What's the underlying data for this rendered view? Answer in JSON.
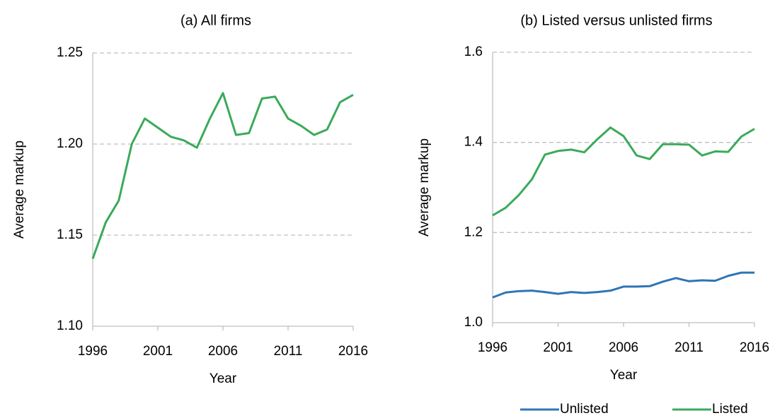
{
  "chart_data": [
    {
      "type": "line",
      "title": "(a) All firms",
      "xlabel": "Year",
      "ylabel": "Average markup",
      "x": [
        1996,
        1997,
        1998,
        1999,
        2000,
        2001,
        2002,
        2003,
        2004,
        2005,
        2006,
        2007,
        2008,
        2009,
        2010,
        2011,
        2012,
        2013,
        2014,
        2015,
        2016
      ],
      "series": [
        {
          "name": "All firms",
          "color": "#3aaa5a",
          "values": [
            1.137,
            1.157,
            1.169,
            1.2,
            1.214,
            1.209,
            1.204,
            1.202,
            1.198,
            1.214,
            1.228,
            1.205,
            1.206,
            1.225,
            1.226,
            1.214,
            1.21,
            1.205,
            1.208,
            1.223,
            1.227
          ]
        }
      ],
      "xlim": [
        1996,
        2016
      ],
      "xticks": [
        1996,
        2001,
        2006,
        2011,
        2016
      ],
      "ylim": [
        1.1,
        1.25
      ],
      "yticks": [
        {
          "value": 1.1,
          "label": "1.10"
        },
        1.15,
        {
          "value": 1.2,
          "label": "1.20"
        },
        1.25
      ],
      "grid": true,
      "legend": false
    },
    {
      "type": "line",
      "title": "(b) Listed versus unlisted firms",
      "xlabel": "Year",
      "ylabel": "Average markup",
      "x": [
        1996,
        1997,
        1998,
        1999,
        2000,
        2001,
        2002,
        2003,
        2004,
        2005,
        2006,
        2007,
        2008,
        2009,
        2010,
        2011,
        2012,
        2013,
        2014,
        2015,
        2016
      ],
      "series": [
        {
          "name": "Unlisted",
          "color": "#2e75b6",
          "values": [
            1.056,
            1.067,
            1.07,
            1.071,
            1.068,
            1.064,
            1.068,
            1.066,
            1.068,
            1.071,
            1.08,
            1.08,
            1.081,
            1.091,
            1.099,
            1.092,
            1.094,
            1.093,
            1.104,
            1.111,
            1.111
          ]
        },
        {
          "name": "Listed",
          "color": "#3aaa5a",
          "values": [
            1.238,
            1.255,
            1.283,
            1.318,
            1.373,
            1.381,
            1.384,
            1.378,
            1.407,
            1.433,
            1.414,
            1.371,
            1.363,
            1.396,
            1.396,
            1.395,
            1.371,
            1.38,
            1.379,
            1.413,
            1.43
          ]
        }
      ],
      "xlim": [
        1996,
        2016
      ],
      "xticks": [
        1996,
        2001,
        2006,
        2011,
        2016
      ],
      "ylim": [
        1.0,
        1.6
      ],
      "yticks": [
        {
          "value": 1.0,
          "label": "1.0"
        },
        1.2,
        1.4,
        1.6
      ],
      "grid": true,
      "legend": "bottom"
    }
  ]
}
